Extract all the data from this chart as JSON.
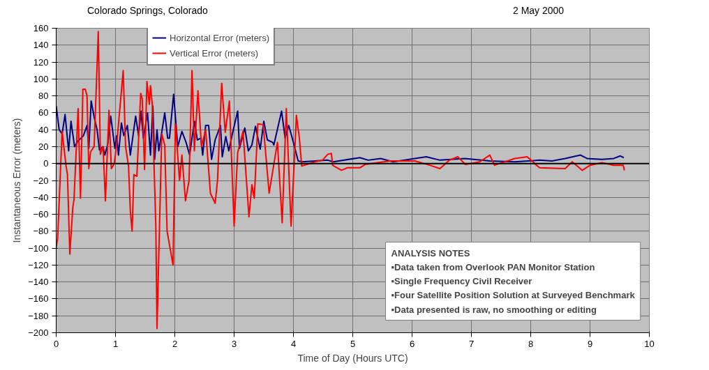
{
  "chart_data": {
    "type": "line",
    "xlabel": "Time of Day (Hours UTC)",
    "ylabel": "Instantaneous Error (meters)",
    "xlim": [
      0,
      10
    ],
    "xticks": [
      0,
      1,
      2,
      3,
      4,
      5,
      6,
      7,
      8,
      9,
      10
    ],
    "ylim": [
      -200,
      160
    ],
    "yticks": [
      -200,
      -180,
      -160,
      -140,
      -120,
      -100,
      -80,
      -60,
      -40,
      -20,
      0,
      20,
      40,
      60,
      80,
      100,
      120,
      140,
      160
    ],
    "grid": true,
    "legend": "top left",
    "marker": "none",
    "line_style": "solid",
    "ref_lines": [
      {
        "axis": "y",
        "value": 0,
        "color": "#000000"
      }
    ],
    "annotations": [
      "Colorado Springs, Colorado",
      "2 May 2000",
      "ANALYSIS NOTES",
      "▪Data taken from Overlook PAN Monitor Station",
      "▪Single Frequency Civil Receiver",
      "▪Four Satellite Position Solution at Surveyed Benchmark",
      "▪Data presented is raw, no smoothing or editing"
    ],
    "series": [
      {
        "name": "Horizontal Error (meters)",
        "color": "#000080",
        "x": [
          0,
          0.05,
          0.1,
          0.15,
          0.21,
          0.25,
          0.31,
          0.37,
          0.42,
          0.46,
          0.52,
          0.55,
          0.59,
          0.64,
          0.69,
          0.73,
          0.79,
          0.82,
          0.87,
          0.92,
          0.99,
          1.02,
          1.05,
          1.1,
          1.14,
          1.2,
          1.25,
          1.34,
          1.39,
          1.43,
          1.47,
          1.54,
          1.59,
          1.63,
          1.66,
          1.7,
          1.73,
          1.78,
          1.83,
          1.88,
          1.91,
          1.98,
          2.05,
          2.12,
          2.19,
          2.25,
          2.33,
          2.38,
          2.44,
          2.47,
          2.52,
          2.57,
          2.62,
          2.68,
          2.77,
          2.8,
          2.86,
          2.91,
          2.97,
          3.06,
          3.09,
          3.18,
          3.24,
          3.3,
          3.36,
          3.44,
          3.5,
          3.56,
          3.65,
          3.67,
          3.8,
          3.86,
          3.92,
          3.98,
          4.08,
          4.15,
          4.58,
          4.67,
          5.12,
          5.26,
          5.47,
          5.68,
          6.24,
          6.47,
          6.89,
          7.31,
          7.73,
          8.15,
          8.36,
          8.58,
          8.84,
          8.95,
          9.2,
          9.4,
          9.51,
          9.57
        ],
        "values": [
          68,
          40,
          35,
          58,
          15,
          50,
          20,
          27,
          30,
          33,
          45,
          18,
          74,
          55,
          40,
          16,
          20,
          10,
          23,
          56,
          18,
          33,
          10,
          48,
          33,
          45,
          10,
          56,
          33,
          62,
          30,
          60,
          10,
          68,
          5,
          40,
          15,
          37,
          60,
          30,
          30,
          82,
          20,
          38,
          25,
          10,
          50,
          28,
          30,
          10,
          45,
          45,
          5,
          28,
          45,
          8,
          32,
          15,
          35,
          62,
          18,
          42,
          15,
          22,
          44,
          17,
          50,
          28,
          25,
          22,
          62,
          30,
          45,
          30,
          3,
          2,
          4,
          2,
          7,
          4,
          6,
          2,
          8,
          4,
          6,
          3,
          2,
          4,
          3,
          6,
          10,
          6,
          5,
          6,
          9,
          7
        ]
      },
      {
        "name": "Vertical Error (meters)",
        "color": "#ff0000",
        "x": [
          0,
          0.025,
          0.1,
          0.165,
          0.19,
          0.23,
          0.28,
          0.3,
          0.37,
          0.41,
          0.45,
          0.49,
          0.52,
          0.55,
          0.58,
          0.64,
          0.71,
          0.745,
          0.79,
          0.83,
          0.89,
          0.93,
          0.98,
          1.025,
          1.13,
          1.17,
          1.22,
          1.25,
          1.28,
          1.31,
          1.36,
          1.425,
          1.45,
          1.49,
          1.53,
          1.57,
          1.59,
          1.62,
          1.68,
          1.7,
          1.78,
          1.83,
          1.87,
          1.97,
          2.01,
          2.08,
          2.12,
          2.18,
          2.24,
          2.29,
          2.33,
          2.39,
          2.45,
          2.52,
          2.6,
          2.68,
          2.72,
          2.79,
          2.85,
          2.92,
          3.0,
          3.06,
          3.15,
          3.25,
          3.3,
          3.34,
          3.4,
          3.49,
          3.59,
          3.73,
          3.81,
          3.88,
          3.96,
          4.02,
          4.05,
          4.1,
          4.14,
          4.36,
          4.49,
          4.58,
          4.64,
          4.66,
          4.81,
          4.91,
          5.12,
          5.21,
          5.62,
          6.05,
          6.3,
          6.47,
          6.63,
          6.77,
          6.9,
          7.14,
          7.31,
          7.39,
          7.73,
          7.94,
          8.1,
          8.15,
          8.58,
          8.7,
          8.87,
          9.0,
          9.2,
          9.4,
          9.56,
          9.58
        ],
        "values": [
          -100,
          -88,
          38,
          -2,
          -13,
          -107,
          -52,
          -43,
          65,
          -41,
          88,
          88,
          80,
          -6,
          14,
          20,
          156,
          11,
          20,
          -44,
          63,
          -6,
          0,
          26,
          110,
          20,
          -3,
          -56,
          -80,
          -13,
          -15,
          83,
          77,
          -7,
          97,
          70,
          92,
          70,
          -74,
          -195,
          35,
          22,
          -80,
          -120,
          47,
          -20,
          10,
          -44,
          -20,
          110,
          15,
          86,
          20,
          40,
          -35,
          -47,
          -20,
          95,
          37,
          74,
          -74,
          13,
          38,
          -63,
          -25,
          -41,
          47,
          46,
          -35,
          25,
          -70,
          65,
          -74,
          11,
          57,
          30,
          -3,
          2,
          4,
          11,
          12,
          -2,
          -8,
          -5,
          -5,
          -1,
          3,
          3,
          -2,
          -6,
          4,
          8,
          -1,
          2,
          10,
          -2,
          6,
          8,
          -2,
          -5,
          -6,
          2,
          -8,
          -2,
          1,
          -2,
          -2,
          -8
        ]
      }
    ]
  }
}
